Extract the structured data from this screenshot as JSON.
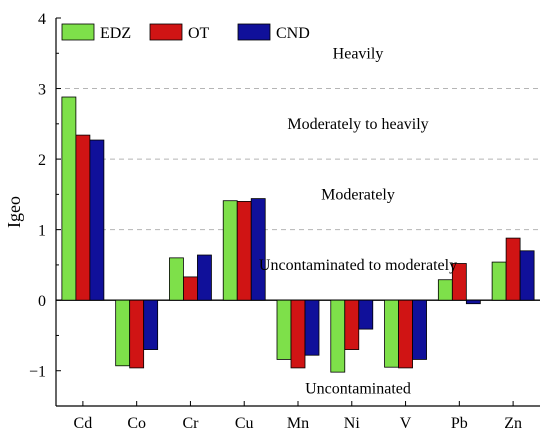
{
  "chart_data": {
    "type": "bar",
    "title": "",
    "xlabel": "",
    "ylabel": "Igeo",
    "ylim": [
      -1.5,
      4
    ],
    "yticks": [
      {
        "value": 4,
        "label": "4"
      },
      {
        "value": 3,
        "label": "3"
      },
      {
        "value": 2,
        "label": "2"
      },
      {
        "value": 1,
        "label": "1"
      },
      {
        "value": 0,
        "label": "0"
      },
      {
        "value": -1,
        "label": "−1"
      }
    ],
    "categories": [
      "Cd",
      "Co",
      "Cr",
      "Cu",
      "Mn",
      "Ni",
      "V",
      "Pb",
      "Zn"
    ],
    "series": [
      {
        "name": "EDZ",
        "color": "#7ee04a",
        "values": [
          2.88,
          -0.93,
          0.6,
          1.41,
          -0.84,
          -1.02,
          -0.95,
          0.29,
          0.54
        ]
      },
      {
        "name": "OT",
        "color": "#d01414",
        "values": [
          2.34,
          -0.96,
          0.33,
          1.4,
          -0.96,
          -0.7,
          -0.96,
          0.52,
          0.88
        ]
      },
      {
        "name": "CND",
        "color": "#10109a",
        "values": [
          2.27,
          -0.7,
          0.64,
          1.44,
          -0.78,
          -0.41,
          -0.84,
          -0.05,
          0.7
        ]
      }
    ],
    "reference_lines": [
      3,
      2,
      1
    ],
    "zero_line": 0,
    "grid": false,
    "legend": "top-left",
    "annotations": [
      {
        "text": "Heavily",
        "y": 3.5
      },
      {
        "text": "Moderately to heavily",
        "y": 2.5
      },
      {
        "text": "Moderately",
        "y": 1.5
      },
      {
        "text": "Uncontaminated to moderately",
        "y": 0.5
      },
      {
        "text": "Uncontaminated",
        "y": -1.25
      }
    ]
  }
}
